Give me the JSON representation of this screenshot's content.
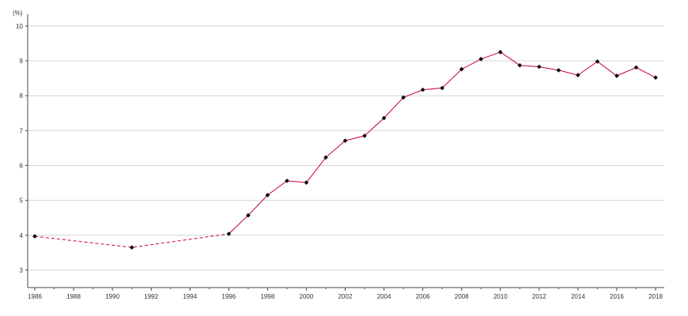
{
  "chart_data": {
    "type": "line",
    "title": "",
    "xlabel": "",
    "ylabel": "",
    "y_unit": "(%)",
    "xlim": [
      1986,
      2018
    ],
    "ylim": [
      2.5,
      10.2
    ],
    "x_ticks": [
      1986,
      1988,
      1990,
      1992,
      1994,
      1996,
      1998,
      2000,
      2002,
      2004,
      2006,
      2008,
      2010,
      2012,
      2014,
      2016,
      2018
    ],
    "x_tick_labels": [
      "1986",
      "1988",
      "1990",
      "1992",
      "1994",
      "1996",
      "1998",
      "2000",
      "2002",
      "2004",
      "2006",
      "2008",
      "2010",
      "2012",
      "2014",
      "2016",
      "2018"
    ],
    "y_ticks": [
      3,
      4,
      5,
      6,
      7,
      8,
      9,
      10
    ],
    "y_tick_labels": [
      "3",
      "4",
      "5",
      "6",
      "7",
      "8",
      "9",
      "10"
    ],
    "grid": true,
    "series": [
      {
        "x": [
          1986,
          1991,
          1996,
          1997,
          1998,
          1999,
          2000,
          2001,
          2002,
          2003,
          2004,
          2005,
          2006,
          2007,
          2008,
          2009,
          2010,
          2011,
          2012,
          2013,
          2014,
          2015,
          2016,
          2017,
          2018
        ],
        "values": [
          3.97,
          3.65,
          4.04,
          4.57,
          5.15,
          5.56,
          5.51,
          6.23,
          6.71,
          6.85,
          7.36,
          7.95,
          8.17,
          8.22,
          8.76,
          9.05,
          9.25,
          8.87,
          8.83,
          8.73,
          8.59,
          8.98,
          8.57,
          8.81,
          8.52
        ],
        "dashed_until": 1996
      }
    ],
    "colors": {
      "line": "#c8002c",
      "marker": "#000000",
      "grid": "#d4d4d4",
      "axis": "#444444"
    }
  }
}
